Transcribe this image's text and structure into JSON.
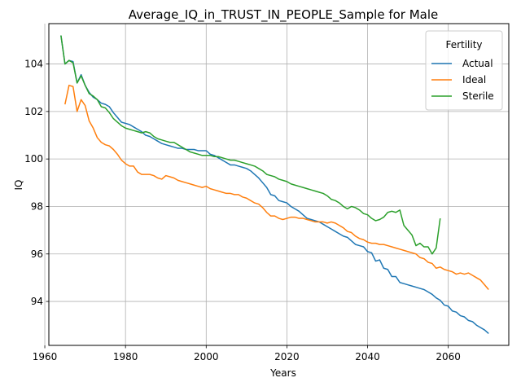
{
  "chart_data": {
    "type": "line",
    "title": "Average_IQ_in_TRUST_IN_PEOPLE_Sample for Male",
    "xlabel": "Years",
    "ylabel": "IQ",
    "xlim": [
      1961,
      2075
    ],
    "ylim": [
      92.15,
      105.7
    ],
    "xticks": [
      1960,
      1980,
      2000,
      2020,
      2040,
      2060
    ],
    "yticks": [
      94,
      96,
      98,
      100,
      102,
      104
    ],
    "grid": true,
    "legend": {
      "title": "Fertility",
      "position": "top-right"
    },
    "series": [
      {
        "name": "Actual",
        "color": "#1f77b4",
        "points": [
          [
            1964,
            105.2
          ],
          [
            1965,
            104.0
          ],
          [
            1966,
            104.15
          ],
          [
            1967,
            104.1
          ],
          [
            1968,
            103.2
          ],
          [
            1969,
            103.55
          ],
          [
            1970,
            103.1
          ],
          [
            1971,
            102.8
          ],
          [
            1972,
            102.6
          ],
          [
            1973,
            102.5
          ],
          [
            1974,
            102.35
          ],
          [
            1975,
            102.3
          ],
          [
            1976,
            102.2
          ],
          [
            1977,
            101.95
          ],
          [
            1978,
            101.75
          ],
          [
            1979,
            101.55
          ],
          [
            1980,
            101.5
          ],
          [
            1981,
            101.45
          ],
          [
            1982,
            101.35
          ],
          [
            1983,
            101.25
          ],
          [
            1984,
            101.15
          ],
          [
            1985,
            101.0
          ],
          [
            1986,
            100.95
          ],
          [
            1987,
            100.85
          ],
          [
            1988,
            100.75
          ],
          [
            1989,
            100.65
          ],
          [
            1990,
            100.6
          ],
          [
            1991,
            100.55
          ],
          [
            1992,
            100.5
          ],
          [
            1993,
            100.45
          ],
          [
            1994,
            100.45
          ],
          [
            1995,
            100.4
          ],
          [
            1996,
            100.4
          ],
          [
            1997,
            100.4
          ],
          [
            1998,
            100.35
          ],
          [
            1999,
            100.35
          ],
          [
            2000,
            100.35
          ],
          [
            2001,
            100.2
          ],
          [
            2002,
            100.15
          ],
          [
            2003,
            100.05
          ],
          [
            2004,
            99.95
          ],
          [
            2005,
            99.85
          ],
          [
            2006,
            99.75
          ],
          [
            2007,
            99.75
          ],
          [
            2008,
            99.7
          ],
          [
            2009,
            99.65
          ],
          [
            2010,
            99.6
          ],
          [
            2011,
            99.5
          ],
          [
            2012,
            99.35
          ],
          [
            2013,
            99.2
          ],
          [
            2014,
            99.0
          ],
          [
            2015,
            98.8
          ],
          [
            2016,
            98.5
          ],
          [
            2017,
            98.45
          ],
          [
            2018,
            98.25
          ],
          [
            2019,
            98.2
          ],
          [
            2020,
            98.15
          ],
          [
            2021,
            98.0
          ],
          [
            2022,
            97.9
          ],
          [
            2023,
            97.8
          ],
          [
            2024,
            97.65
          ],
          [
            2025,
            97.5
          ],
          [
            2026,
            97.45
          ],
          [
            2027,
            97.4
          ],
          [
            2028,
            97.35
          ],
          [
            2029,
            97.25
          ],
          [
            2030,
            97.15
          ],
          [
            2031,
            97.05
          ],
          [
            2032,
            96.95
          ],
          [
            2033,
            96.85
          ],
          [
            2034,
            96.75
          ],
          [
            2035,
            96.7
          ],
          [
            2036,
            96.55
          ],
          [
            2037,
            96.4
          ],
          [
            2038,
            96.35
          ],
          [
            2039,
            96.3
          ],
          [
            2040,
            96.1
          ],
          [
            2041,
            96.05
          ],
          [
            2042,
            95.7
          ],
          [
            2043,
            95.75
          ],
          [
            2044,
            95.4
          ],
          [
            2045,
            95.35
          ],
          [
            2046,
            95.05
          ],
          [
            2047,
            95.05
          ],
          [
            2048,
            94.8
          ],
          [
            2049,
            94.75
          ],
          [
            2050,
            94.7
          ],
          [
            2051,
            94.65
          ],
          [
            2052,
            94.6
          ],
          [
            2053,
            94.55
          ],
          [
            2054,
            94.5
          ],
          [
            2055,
            94.4
          ],
          [
            2056,
            94.3
          ],
          [
            2057,
            94.15
          ],
          [
            2058,
            94.05
          ],
          [
            2059,
            93.85
          ],
          [
            2060,
            93.8
          ],
          [
            2061,
            93.6
          ],
          [
            2062,
            93.55
          ],
          [
            2063,
            93.4
          ],
          [
            2064,
            93.35
          ],
          [
            2065,
            93.2
          ],
          [
            2066,
            93.15
          ],
          [
            2067,
            93.0
          ],
          [
            2068,
            92.9
          ],
          [
            2069,
            92.8
          ],
          [
            2070,
            92.65
          ]
        ]
      },
      {
        "name": "Ideal",
        "color": "#ff7f0e",
        "points": [
          [
            1965,
            102.3
          ],
          [
            1966,
            103.1
          ],
          [
            1967,
            103.05
          ],
          [
            1968,
            102.0
          ],
          [
            1969,
            102.5
          ],
          [
            1970,
            102.25
          ],
          [
            1971,
            101.6
          ],
          [
            1972,
            101.3
          ],
          [
            1973,
            100.9
          ],
          [
            1974,
            100.7
          ],
          [
            1975,
            100.6
          ],
          [
            1976,
            100.55
          ],
          [
            1977,
            100.4
          ],
          [
            1978,
            100.2
          ],
          [
            1979,
            99.95
          ],
          [
            1980,
            99.8
          ],
          [
            1981,
            99.7
          ],
          [
            1982,
            99.7
          ],
          [
            1983,
            99.45
          ],
          [
            1984,
            99.35
          ],
          [
            1985,
            99.35
          ],
          [
            1986,
            99.35
          ],
          [
            1987,
            99.3
          ],
          [
            1988,
            99.2
          ],
          [
            1989,
            99.15
          ],
          [
            1990,
            99.3
          ],
          [
            1991,
            99.25
          ],
          [
            1992,
            99.2
          ],
          [
            1993,
            99.1
          ],
          [
            1994,
            99.05
          ],
          [
            1995,
            99.0
          ],
          [
            1996,
            98.95
          ],
          [
            1997,
            98.9
          ],
          [
            1998,
            98.85
          ],
          [
            1999,
            98.8
          ],
          [
            2000,
            98.85
          ],
          [
            2001,
            98.75
          ],
          [
            2002,
            98.7
          ],
          [
            2003,
            98.65
          ],
          [
            2004,
            98.6
          ],
          [
            2005,
            98.55
          ],
          [
            2006,
            98.55
          ],
          [
            2007,
            98.5
          ],
          [
            2008,
            98.5
          ],
          [
            2009,
            98.4
          ],
          [
            2010,
            98.35
          ],
          [
            2011,
            98.25
          ],
          [
            2012,
            98.15
          ],
          [
            2013,
            98.1
          ],
          [
            2014,
            97.95
          ],
          [
            2015,
            97.75
          ],
          [
            2016,
            97.6
          ],
          [
            2017,
            97.6
          ],
          [
            2018,
            97.5
          ],
          [
            2019,
            97.45
          ],
          [
            2020,
            97.5
          ],
          [
            2021,
            97.55
          ],
          [
            2022,
            97.55
          ],
          [
            2023,
            97.5
          ],
          [
            2024,
            97.5
          ],
          [
            2025,
            97.45
          ],
          [
            2026,
            97.4
          ],
          [
            2027,
            97.35
          ],
          [
            2028,
            97.35
          ],
          [
            2029,
            97.35
          ],
          [
            2030,
            97.3
          ],
          [
            2031,
            97.35
          ],
          [
            2032,
            97.3
          ],
          [
            2033,
            97.2
          ],
          [
            2034,
            97.1
          ],
          [
            2035,
            96.95
          ],
          [
            2036,
            96.9
          ],
          [
            2037,
            96.75
          ],
          [
            2038,
            96.65
          ],
          [
            2039,
            96.6
          ],
          [
            2040,
            96.5
          ],
          [
            2041,
            96.45
          ],
          [
            2042,
            96.45
          ],
          [
            2043,
            96.4
          ],
          [
            2044,
            96.4
          ],
          [
            2045,
            96.35
          ],
          [
            2046,
            96.3
          ],
          [
            2047,
            96.25
          ],
          [
            2048,
            96.2
          ],
          [
            2049,
            96.15
          ],
          [
            2050,
            96.1
          ],
          [
            2051,
            96.05
          ],
          [
            2052,
            96.0
          ],
          [
            2053,
            95.85
          ],
          [
            2054,
            95.8
          ],
          [
            2055,
            95.65
          ],
          [
            2056,
            95.6
          ],
          [
            2057,
            95.4
          ],
          [
            2058,
            95.45
          ],
          [
            2059,
            95.35
          ],
          [
            2060,
            95.3
          ],
          [
            2061,
            95.25
          ],
          [
            2062,
            95.15
          ],
          [
            2063,
            95.2
          ],
          [
            2064,
            95.15
          ],
          [
            2065,
            95.2
          ],
          [
            2066,
            95.1
          ],
          [
            2067,
            95.0
          ],
          [
            2068,
            94.9
          ],
          [
            2069,
            94.7
          ],
          [
            2070,
            94.5
          ]
        ]
      },
      {
        "name": "Sterile",
        "color": "#2ca02c",
        "points": [
          [
            1964,
            105.2
          ],
          [
            1965,
            104.0
          ],
          [
            1966,
            104.15
          ],
          [
            1967,
            104.05
          ],
          [
            1968,
            103.2
          ],
          [
            1969,
            103.5
          ],
          [
            1970,
            103.1
          ],
          [
            1971,
            102.75
          ],
          [
            1972,
            102.65
          ],
          [
            1973,
            102.5
          ],
          [
            1974,
            102.2
          ],
          [
            1975,
            102.15
          ],
          [
            1976,
            101.95
          ],
          [
            1977,
            101.7
          ],
          [
            1978,
            101.55
          ],
          [
            1979,
            101.4
          ],
          [
            1980,
            101.3
          ],
          [
            1981,
            101.25
          ],
          [
            1982,
            101.2
          ],
          [
            1983,
            101.15
          ],
          [
            1984,
            101.1
          ],
          [
            1985,
            101.15
          ],
          [
            1986,
            101.1
          ],
          [
            1987,
            100.95
          ],
          [
            1988,
            100.85
          ],
          [
            1989,
            100.8
          ],
          [
            1990,
            100.75
          ],
          [
            1991,
            100.7
          ],
          [
            1992,
            100.7
          ],
          [
            1993,
            100.6
          ],
          [
            1994,
            100.5
          ],
          [
            1995,
            100.4
          ],
          [
            1996,
            100.3
          ],
          [
            1997,
            100.25
          ],
          [
            1998,
            100.2
          ],
          [
            1999,
            100.15
          ],
          [
            2000,
            100.15
          ],
          [
            2001,
            100.15
          ],
          [
            2002,
            100.1
          ],
          [
            2003,
            100.1
          ],
          [
            2004,
            100.05
          ],
          [
            2005,
            100.0
          ],
          [
            2006,
            99.95
          ],
          [
            2007,
            99.95
          ],
          [
            2008,
            99.9
          ],
          [
            2009,
            99.85
          ],
          [
            2010,
            99.8
          ],
          [
            2011,
            99.75
          ],
          [
            2012,
            99.7
          ],
          [
            2013,
            99.6
          ],
          [
            2014,
            99.5
          ],
          [
            2015,
            99.35
          ],
          [
            2016,
            99.3
          ],
          [
            2017,
            99.25
          ],
          [
            2018,
            99.15
          ],
          [
            2019,
            99.1
          ],
          [
            2020,
            99.05
          ],
          [
            2021,
            98.95
          ],
          [
            2022,
            98.9
          ],
          [
            2023,
            98.85
          ],
          [
            2024,
            98.8
          ],
          [
            2025,
            98.75
          ],
          [
            2026,
            98.7
          ],
          [
            2027,
            98.65
          ],
          [
            2028,
            98.6
          ],
          [
            2029,
            98.55
          ],
          [
            2030,
            98.45
          ],
          [
            2031,
            98.3
          ],
          [
            2032,
            98.25
          ],
          [
            2033,
            98.15
          ],
          [
            2034,
            98.0
          ],
          [
            2035,
            97.9
          ],
          [
            2036,
            98.0
          ],
          [
            2037,
            97.95
          ],
          [
            2038,
            97.85
          ],
          [
            2039,
            97.7
          ],
          [
            2040,
            97.65
          ],
          [
            2041,
            97.5
          ],
          [
            2042,
            97.4
          ],
          [
            2043,
            97.45
          ],
          [
            2044,
            97.55
          ],
          [
            2045,
            97.75
          ],
          [
            2046,
            97.8
          ],
          [
            2047,
            97.75
          ],
          [
            2048,
            97.85
          ],
          [
            2049,
            97.2
          ],
          [
            2050,
            97.0
          ],
          [
            2051,
            96.8
          ],
          [
            2052,
            96.35
          ],
          [
            2053,
            96.45
          ],
          [
            2054,
            96.3
          ],
          [
            2055,
            96.3
          ],
          [
            2056,
            96.0
          ],
          [
            2057,
            96.25
          ],
          [
            2058,
            97.5
          ]
        ]
      }
    ]
  }
}
